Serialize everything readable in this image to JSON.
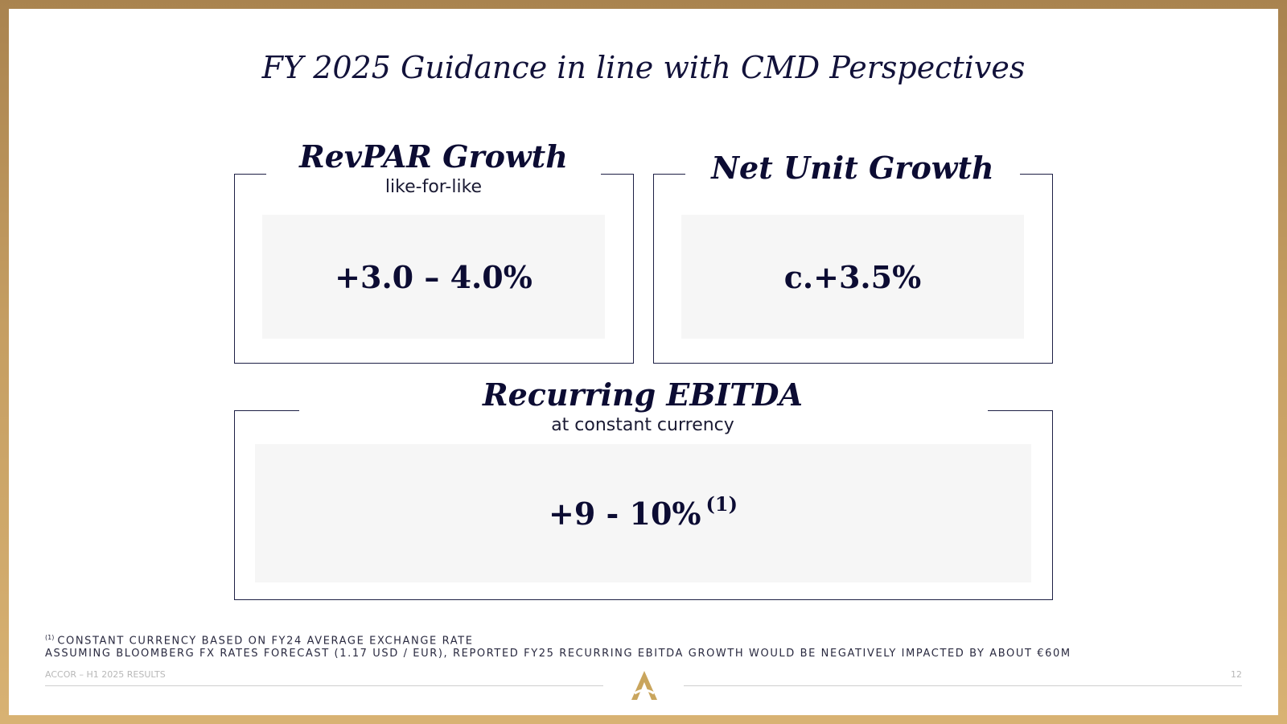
{
  "title": "FY 2025 Guidance in line with CMD Perspectives",
  "cards": {
    "revpar": {
      "title": "RevPAR Growth",
      "subtitle": "like-for-like",
      "value": "+3.0 – 4.0%"
    },
    "net_unit": {
      "title": "Net Unit Growth",
      "value": "c.+3.5%"
    },
    "ebitda": {
      "title": "Recurring EBITDA",
      "subtitle": "at constant currency",
      "value": "+9 - 10%",
      "value_note": "(1)"
    }
  },
  "footnotes": {
    "marker": "(1)",
    "line1": "CONSTANT CURRENCY BASED ON FY24 AVERAGE EXCHANGE RATE",
    "line2": "ASSUMING BLOOMBERG FX RATES FORECAST (1.17 USD / EUR), REPORTED FY25 RECURRING EBITDA GROWTH WOULD BE NEGATIVELY IMPACTED BY ABOUT €60M"
  },
  "footer": {
    "left": "ACCOR – H1 2025 RESULTS",
    "page": "12"
  },
  "colors": {
    "frame": "#c59e62",
    "ink": "#0c0c33",
    "gold_logo": "#c9a55d"
  },
  "icons": {
    "logo": "accor-logo-icon"
  }
}
